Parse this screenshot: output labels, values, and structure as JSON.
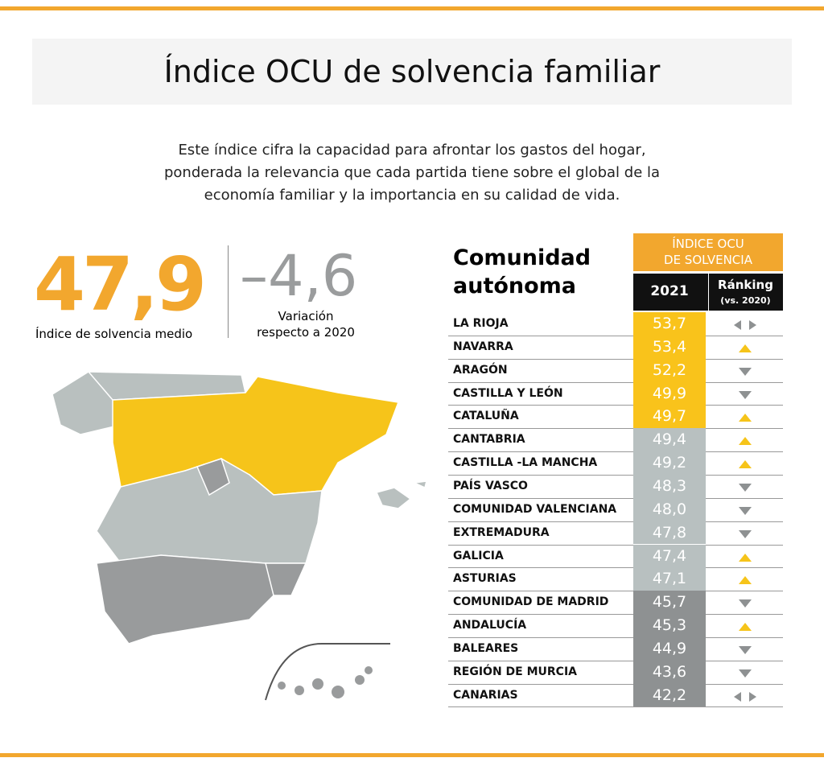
{
  "header": {
    "title": "Índice OCU de solvencia familiar"
  },
  "intro": [
    "Este índice cifra la capacidad para afrontar los gastos del hogar,",
    "ponderada la relevancia que cada partida tiene sobre el global de la",
    "economía familiar y la importancia en su calidad de vida."
  ],
  "summary": {
    "value": "47,9",
    "label": "Índice de solvencia medio",
    "variation": "–4,6",
    "variation_label": [
      "Variación",
      "respecto a 2020"
    ]
  },
  "table": {
    "heading": [
      "Comunidad",
      "autónoma"
    ],
    "column_group": [
      "ÍNDICE OCU",
      "DE SOLVENCIA"
    ],
    "columns": [
      "2021",
      "Ránking",
      "(vs. 2020)"
    ],
    "rows": [
      {
        "region": "LA RIOJA",
        "value": "53,7",
        "trend": "same",
        "color": "#f9c31b"
      },
      {
        "region": "NAVARRA",
        "value": "53,4",
        "trend": "up",
        "color": "#f9c31b"
      },
      {
        "region": "ARAGÓN",
        "value": "52,2",
        "trend": "down",
        "color": "#f9c31b"
      },
      {
        "region": "CASTILLA Y LEÓN",
        "value": "49,9",
        "trend": "down",
        "color": "#f9c31b"
      },
      {
        "region": "CATALUÑA",
        "value": "49,7",
        "trend": "up",
        "color": "#f9c31b"
      },
      {
        "region": "CANTABRIA",
        "value": "49,4",
        "trend": "up",
        "color": "#b8c0c0"
      },
      {
        "region": "CASTILLA -LA MANCHA",
        "value": "49,2",
        "trend": "up",
        "color": "#b8c0c0"
      },
      {
        "region": "PAÍS VASCO",
        "value": "48,3",
        "trend": "down",
        "color": "#b8c0c0"
      },
      {
        "region": "COMUNIDAD VALENCIANA",
        "value": "48,0",
        "trend": "down",
        "color": "#b8c0c0"
      },
      {
        "region": "EXTREMADURA",
        "value": "47,8",
        "trend": "down",
        "color": "#b8c0c0"
      },
      {
        "region": "GALICIA",
        "value": "47,4",
        "trend": "up",
        "color": "#b8c0c0"
      },
      {
        "region": "ASTURIAS",
        "value": "47,1",
        "trend": "up",
        "color": "#b8c0c0"
      },
      {
        "region": "COMUNIDAD DE MADRID",
        "value": "45,7",
        "trend": "down",
        "color": "#8e9192"
      },
      {
        "region": "ANDALUCÍA",
        "value": "45,3",
        "trend": "up",
        "color": "#8e9192"
      },
      {
        "region": "BALEARES",
        "value": "44,9",
        "trend": "down",
        "color": "#8e9192"
      },
      {
        "region": "REGIÓN DE MURCIA",
        "value": "43,6",
        "trend": "down",
        "color": "#8e9192"
      },
      {
        "region": "CANARIAS",
        "value": "42,2",
        "trend": "same",
        "color": "#8e9192"
      }
    ]
  }
}
